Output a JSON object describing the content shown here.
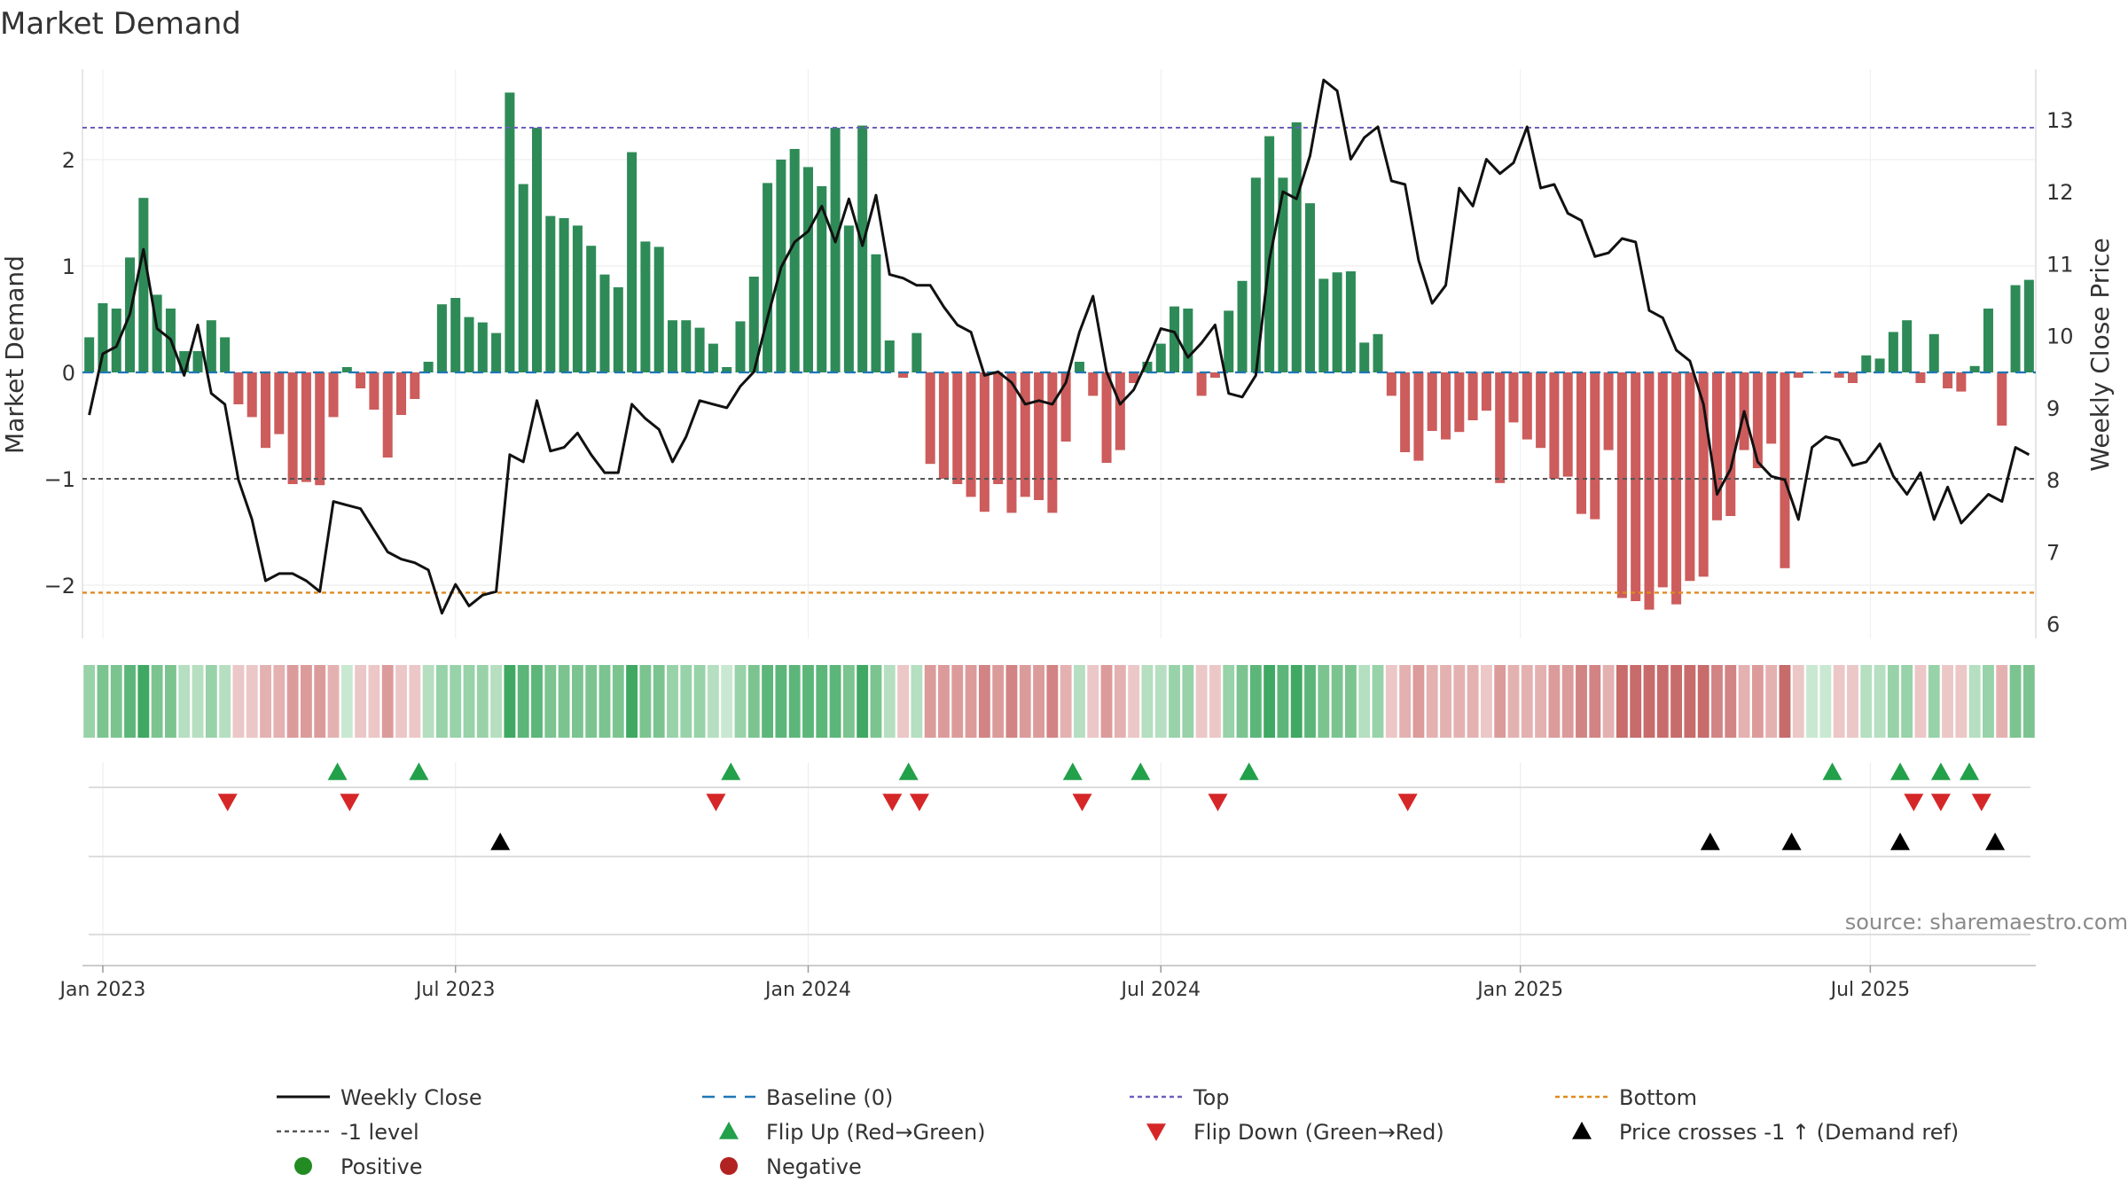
{
  "chart_data": {
    "type": "bar",
    "title": "Market Demand",
    "ylabel": "Market Demand",
    "y2label": "Weekly Close Price",
    "ylim": [
      -2.5,
      2.85
    ],
    "y2lim": [
      5.8,
      13.7
    ],
    "yticks": [
      {
        "value": 2,
        "label": "2"
      },
      {
        "value": 1,
        "label": "1"
      },
      {
        "value": 0,
        "label": "0"
      },
      {
        "value": -1,
        "label": "−1"
      },
      {
        "value": -2,
        "label": "−2"
      }
    ],
    "y2ticks": [
      {
        "value": 13,
        "label": "13"
      },
      {
        "value": 12,
        "label": "12"
      },
      {
        "value": 11,
        "label": "11"
      },
      {
        "value": 10,
        "label": "10"
      },
      {
        "value": 9,
        "label": "9"
      },
      {
        "value": 8,
        "label": "8"
      },
      {
        "value": 7,
        "label": "7"
      },
      {
        "value": 6,
        "label": "6"
      }
    ],
    "xticks": [
      {
        "week": 1,
        "label": "Jan 2023"
      },
      {
        "week": 27,
        "label": "Jul 2023"
      },
      {
        "week": 53,
        "label": "Jan 2024"
      },
      {
        "week": 79,
        "label": "Jul 2024"
      },
      {
        "week": 105.5,
        "label": "Jan 2025"
      },
      {
        "week": 131.3,
        "label": "Jul 2025"
      }
    ],
    "start_week": 0,
    "reference_lines": {
      "top": 2.3,
      "bottom": -2.07,
      "minus_one": -1,
      "baseline": 0
    },
    "demand": [
      0.33,
      0.65,
      0.6,
      1.08,
      1.64,
      0.73,
      0.6,
      0.2,
      0.2,
      0.49,
      0.33,
      -0.3,
      -0.42,
      -0.71,
      -0.58,
      -1.05,
      -1.03,
      -1.06,
      -0.42,
      0.05,
      -0.15,
      -0.35,
      -0.8,
      -0.4,
      -0.25,
      0.1,
      0.64,
      0.7,
      0.52,
      0.47,
      0.37,
      2.63,
      1.77,
      2.3,
      1.47,
      1.45,
      1.38,
      1.19,
      0.92,
      0.8,
      2.07,
      1.23,
      1.18,
      0.49,
      0.49,
      0.42,
      0.27,
      0.05,
      0.48,
      0.9,
      1.78,
      2.0,
      2.1,
      1.93,
      1.75,
      2.3,
      1.38,
      2.32,
      1.11,
      0.3,
      -0.05,
      0.37,
      -0.86,
      -1.0,
      -1.05,
      -1.17,
      -1.31,
      -1.05,
      -1.32,
      -1.17,
      -1.2,
      -1.32,
      -0.65,
      0.1,
      -0.22,
      -0.85,
      -0.73,
      -0.1,
      0.1,
      0.27,
      0.62,
      0.6,
      -0.22,
      -0.05,
      0.58,
      0.86,
      1.83,
      2.22,
      1.83,
      2.35,
      1.59,
      0.88,
      0.94,
      0.95,
      0.28,
      0.36,
      -0.22,
      -0.75,
      -0.83,
      -0.55,
      -0.63,
      -0.56,
      -0.45,
      -0.36,
      -1.04,
      -0.47,
      -0.63,
      -0.71,
      -1.0,
      -0.98,
      -1.33,
      -1.38,
      -0.73,
      -2.12,
      -2.15,
      -2.23,
      -2.02,
      -2.18,
      -1.96,
      -1.92,
      -1.39,
      -1.35,
      -0.73,
      -0.9,
      -0.67,
      -1.84,
      -0.05,
      0.0,
      0.0,
      -0.05,
      -0.1,
      0.16,
      0.13,
      0.38,
      0.49,
      -0.1,
      0.36,
      -0.15,
      -0.18,
      0.06,
      0.6,
      -0.5,
      0.82,
      0.87
    ],
    "close": [
      8.9,
      9.75,
      9.85,
      10.3,
      11.2,
      10.1,
      9.95,
      9.45,
      10.15,
      9.2,
      9.05,
      8.0,
      7.45,
      6.6,
      6.7,
      6.7,
      6.6,
      6.45,
      7.7,
      7.65,
      7.6,
      7.3,
      7.0,
      6.9,
      6.85,
      6.75,
      6.15,
      6.55,
      6.25,
      6.4,
      6.45,
      8.35,
      8.25,
      9.1,
      8.4,
      8.45,
      8.65,
      8.35,
      8.1,
      8.1,
      9.05,
      8.85,
      8.7,
      8.25,
      8.6,
      9.1,
      9.05,
      9.0,
      9.3,
      9.5,
      10.25,
      10.95,
      11.3,
      11.45,
      11.8,
      11.3,
      11.9,
      11.25,
      11.95,
      10.85,
      10.8,
      10.7,
      10.7,
      10.4,
      10.15,
      10.05,
      9.45,
      9.5,
      9.35,
      9.05,
      9.1,
      9.05,
      9.35,
      10.05,
      10.55,
      9.5,
      9.05,
      9.25,
      9.65,
      10.1,
      10.05,
      9.7,
      9.9,
      10.15,
      9.2,
      9.15,
      9.45,
      11.05,
      12.0,
      11.9,
      12.5,
      13.55,
      13.4,
      12.45,
      12.75,
      12.9,
      12.15,
      12.1,
      11.05,
      10.45,
      10.7,
      12.05,
      11.8,
      12.45,
      12.25,
      12.4,
      12.9,
      12.05,
      12.1,
      11.7,
      11.6,
      11.1,
      11.15,
      11.35,
      11.3,
      10.35,
      10.25,
      9.8,
      9.65,
      9.05,
      7.8,
      8.15,
      8.95,
      8.25,
      8.05,
      8.0,
      7.45,
      8.45,
      8.6,
      8.55,
      8.2,
      8.25,
      8.5,
      8.05,
      7.8,
      8.1,
      7.45,
      7.9,
      7.4,
      7.6,
      7.8,
      7.7,
      8.45,
      8.35
    ],
    "heat_strip": [
      2,
      3,
      3,
      4,
      5,
      3,
      3,
      1,
      1,
      2,
      1,
      -1,
      -1,
      -2,
      -2,
      -3,
      -3,
      -3,
      -2,
      0,
      -1,
      -1,
      -3,
      -1,
      -1,
      1,
      2,
      2,
      2,
      2,
      1,
      5,
      4,
      4,
      3,
      3,
      3,
      3,
      3,
      3,
      5,
      3,
      3,
      2,
      2,
      2,
      1,
      0,
      2,
      3,
      4,
      4,
      4,
      4,
      4,
      4,
      3,
      5,
      3,
      1,
      -1,
      1,
      -3,
      -3,
      -3,
      -3,
      -4,
      -3,
      -4,
      -3,
      -3,
      -4,
      -2,
      1,
      -1,
      -3,
      -2,
      -1,
      1,
      1,
      2,
      2,
      -1,
      -1,
      2,
      3,
      4,
      5,
      4,
      5,
      4,
      3,
      3,
      3,
      1,
      2,
      -1,
      -2,
      -3,
      -2,
      -2,
      -2,
      -2,
      -1,
      -3,
      -2,
      -2,
      -2,
      -3,
      -3,
      -4,
      -4,
      -2,
      -5,
      -5,
      -5,
      -5,
      -5,
      -5,
      -5,
      -4,
      -4,
      -2,
      -3,
      -2,
      -5,
      -1,
      0,
      0,
      -1,
      -1,
      1,
      1,
      2,
      2,
      -1,
      2,
      -1,
      -1,
      1,
      2,
      -2,
      3,
      3
    ],
    "flip_up_weeks": [
      18.3,
      24.3,
      47.3,
      60.4,
      72.5,
      77.5,
      85.5,
      128.5,
      133.5,
      136.5,
      138.6
    ],
    "flip_down_weeks": [
      10.2,
      19.2,
      46.2,
      59.2,
      61.2,
      73.2,
      83.2,
      97.2,
      134.5,
      136.5,
      139.5
    ],
    "price_cross_weeks": [
      30.3,
      119.5,
      125.5,
      133.5,
      140.5
    ],
    "source_label": "source: sharemaestro.com"
  },
  "legend": [
    {
      "key": "weekly_close",
      "label": "Weekly Close",
      "color": "#111111"
    },
    {
      "key": "baseline",
      "label": "Baseline (0)",
      "color": "#1f77b4"
    },
    {
      "key": "top",
      "label": "Top",
      "color": "#6b5fbf"
    },
    {
      "key": "bottom",
      "label": "Bottom",
      "color": "#e08a1e"
    },
    {
      "key": "minus_one",
      "label": "-1 level",
      "color": "#555555"
    },
    {
      "key": "flip_up",
      "label": "Flip Up (Red→Green)",
      "color": "#22a04a"
    },
    {
      "key": "flip_down",
      "label": "Flip Down (Green→Red)",
      "color": "#d62728"
    },
    {
      "key": "price_cross",
      "label": "Price crosses -1 ↑ (Demand ref)",
      "color": "#000000"
    },
    {
      "key": "positive",
      "label": "Positive",
      "color": "#228b22"
    },
    {
      "key": "negative",
      "label": "Negative",
      "color": "#b22222"
    }
  ],
  "colors": {
    "positive_bar": "#2e8b57",
    "negative_bar": "#cd5c5c",
    "close_line": "#111111"
  }
}
